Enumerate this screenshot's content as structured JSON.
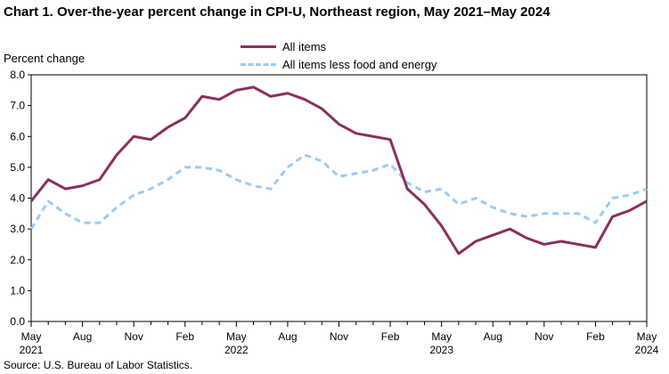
{
  "chart_data": {
    "type": "line",
    "title": "Chart 1. Over-the-year percent change in CPI-U, Northeast region, May 2021–May  2024",
    "ylabel": "Percent change",
    "xlabel": "",
    "ylim": [
      0,
      8
    ],
    "yticks": [
      "0.0",
      "1.0",
      "2.0",
      "3.0",
      "4.0",
      "5.0",
      "6.0",
      "7.0",
      "8.0"
    ],
    "legend_placement": "top-center",
    "grid": false,
    "x_ticks": [
      {
        "index": 0,
        "label": "May",
        "year": "2021"
      },
      {
        "index": 3,
        "label": "Aug",
        "year": ""
      },
      {
        "index": 6,
        "label": "Nov",
        "year": ""
      },
      {
        "index": 9,
        "label": "Feb",
        "year": ""
      },
      {
        "index": 12,
        "label": "May",
        "year": "2022"
      },
      {
        "index": 15,
        "label": "Aug",
        "year": ""
      },
      {
        "index": 18,
        "label": "Nov",
        "year": ""
      },
      {
        "index": 21,
        "label": "Feb",
        "year": ""
      },
      {
        "index": 24,
        "label": "May",
        "year": "2023"
      },
      {
        "index": 27,
        "label": "Aug",
        "year": ""
      },
      {
        "index": 30,
        "label": "Nov",
        "year": ""
      },
      {
        "index": 33,
        "label": "Feb",
        "year": ""
      },
      {
        "index": 36,
        "label": "May",
        "year": "2024"
      }
    ],
    "series": [
      {
        "name": "All items",
        "color": "#8b2f5b",
        "style": "solid",
        "values": [
          3.9,
          4.6,
          4.3,
          4.4,
          4.6,
          5.4,
          6.0,
          5.9,
          6.3,
          6.6,
          7.3,
          7.2,
          7.5,
          7.6,
          7.3,
          7.4,
          7.2,
          6.9,
          6.4,
          6.1,
          6.0,
          5.9,
          4.3,
          3.8,
          3.1,
          2.2,
          2.6,
          2.8,
          3.0,
          2.7,
          2.5,
          2.6,
          2.5,
          2.4,
          3.4,
          3.6,
          3.9
        ]
      },
      {
        "name": "All items less food and energy",
        "color": "#99ccf6",
        "style": "dashed",
        "values": [
          3.0,
          3.9,
          3.5,
          3.2,
          3.2,
          3.7,
          4.1,
          4.3,
          4.6,
          5.0,
          5.0,
          4.9,
          4.6,
          4.4,
          4.3,
          5.0,
          5.4,
          5.2,
          4.7,
          4.8,
          4.9,
          5.1,
          4.5,
          4.2,
          4.3,
          3.8,
          4.0,
          3.7,
          3.5,
          3.4,
          3.5,
          3.5,
          3.5,
          3.2,
          4.0,
          4.1,
          4.3
        ]
      }
    ]
  },
  "source": "Source: U.S. Bureau  of Labor Statistics."
}
